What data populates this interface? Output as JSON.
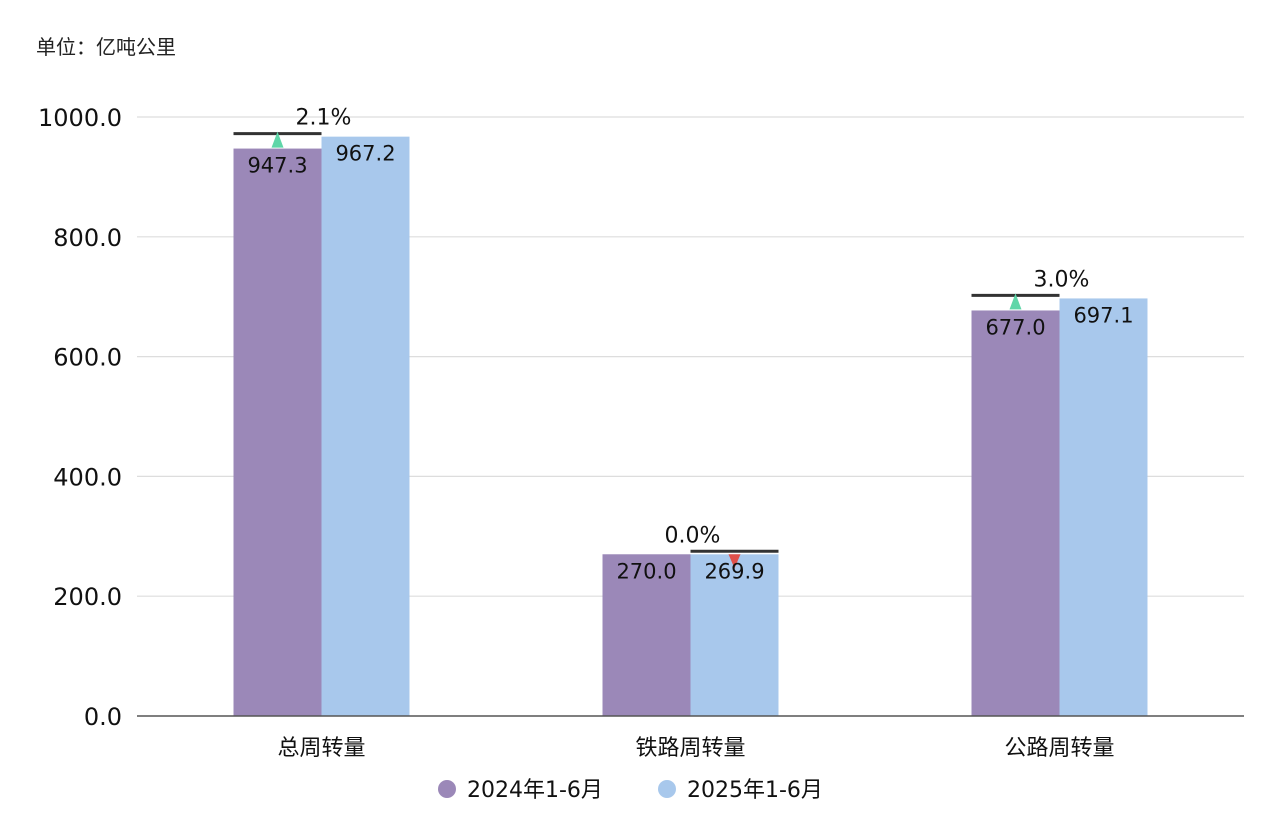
{
  "chart_data": {
    "type": "bar",
    "unit_label": "单位：亿吨公里",
    "categories": [
      "总周转量",
      "铁路周转量",
      "公路周转量"
    ],
    "series": [
      {
        "name": "2024年1-6月",
        "values": [
          947.3,
          270.0,
          677.0
        ],
        "labels": [
          "947.3",
          "270.0",
          "677.0"
        ],
        "color": "#9b88b8"
      },
      {
        "name": "2025年1-6月",
        "values": [
          967.2,
          269.9,
          697.1
        ],
        "labels": [
          "967.2",
          "269.9",
          "697.1"
        ],
        "color": "#a8c8ec"
      }
    ],
    "growth": [
      {
        "label": "2.1%",
        "direction": "up"
      },
      {
        "label": "0.0%",
        "direction": "down"
      },
      {
        "label": "3.0%",
        "direction": "up"
      }
    ],
    "yticks": [
      "0.0",
      "200.0",
      "400.0",
      "600.0",
      "800.0",
      "1000.0"
    ],
    "ylim": [
      0,
      1000
    ],
    "grid": true,
    "legend_position": "bottom",
    "colors": {
      "up": "#5fd6a8",
      "down": "#e0504a",
      "bar_cap": "#333333"
    }
  }
}
